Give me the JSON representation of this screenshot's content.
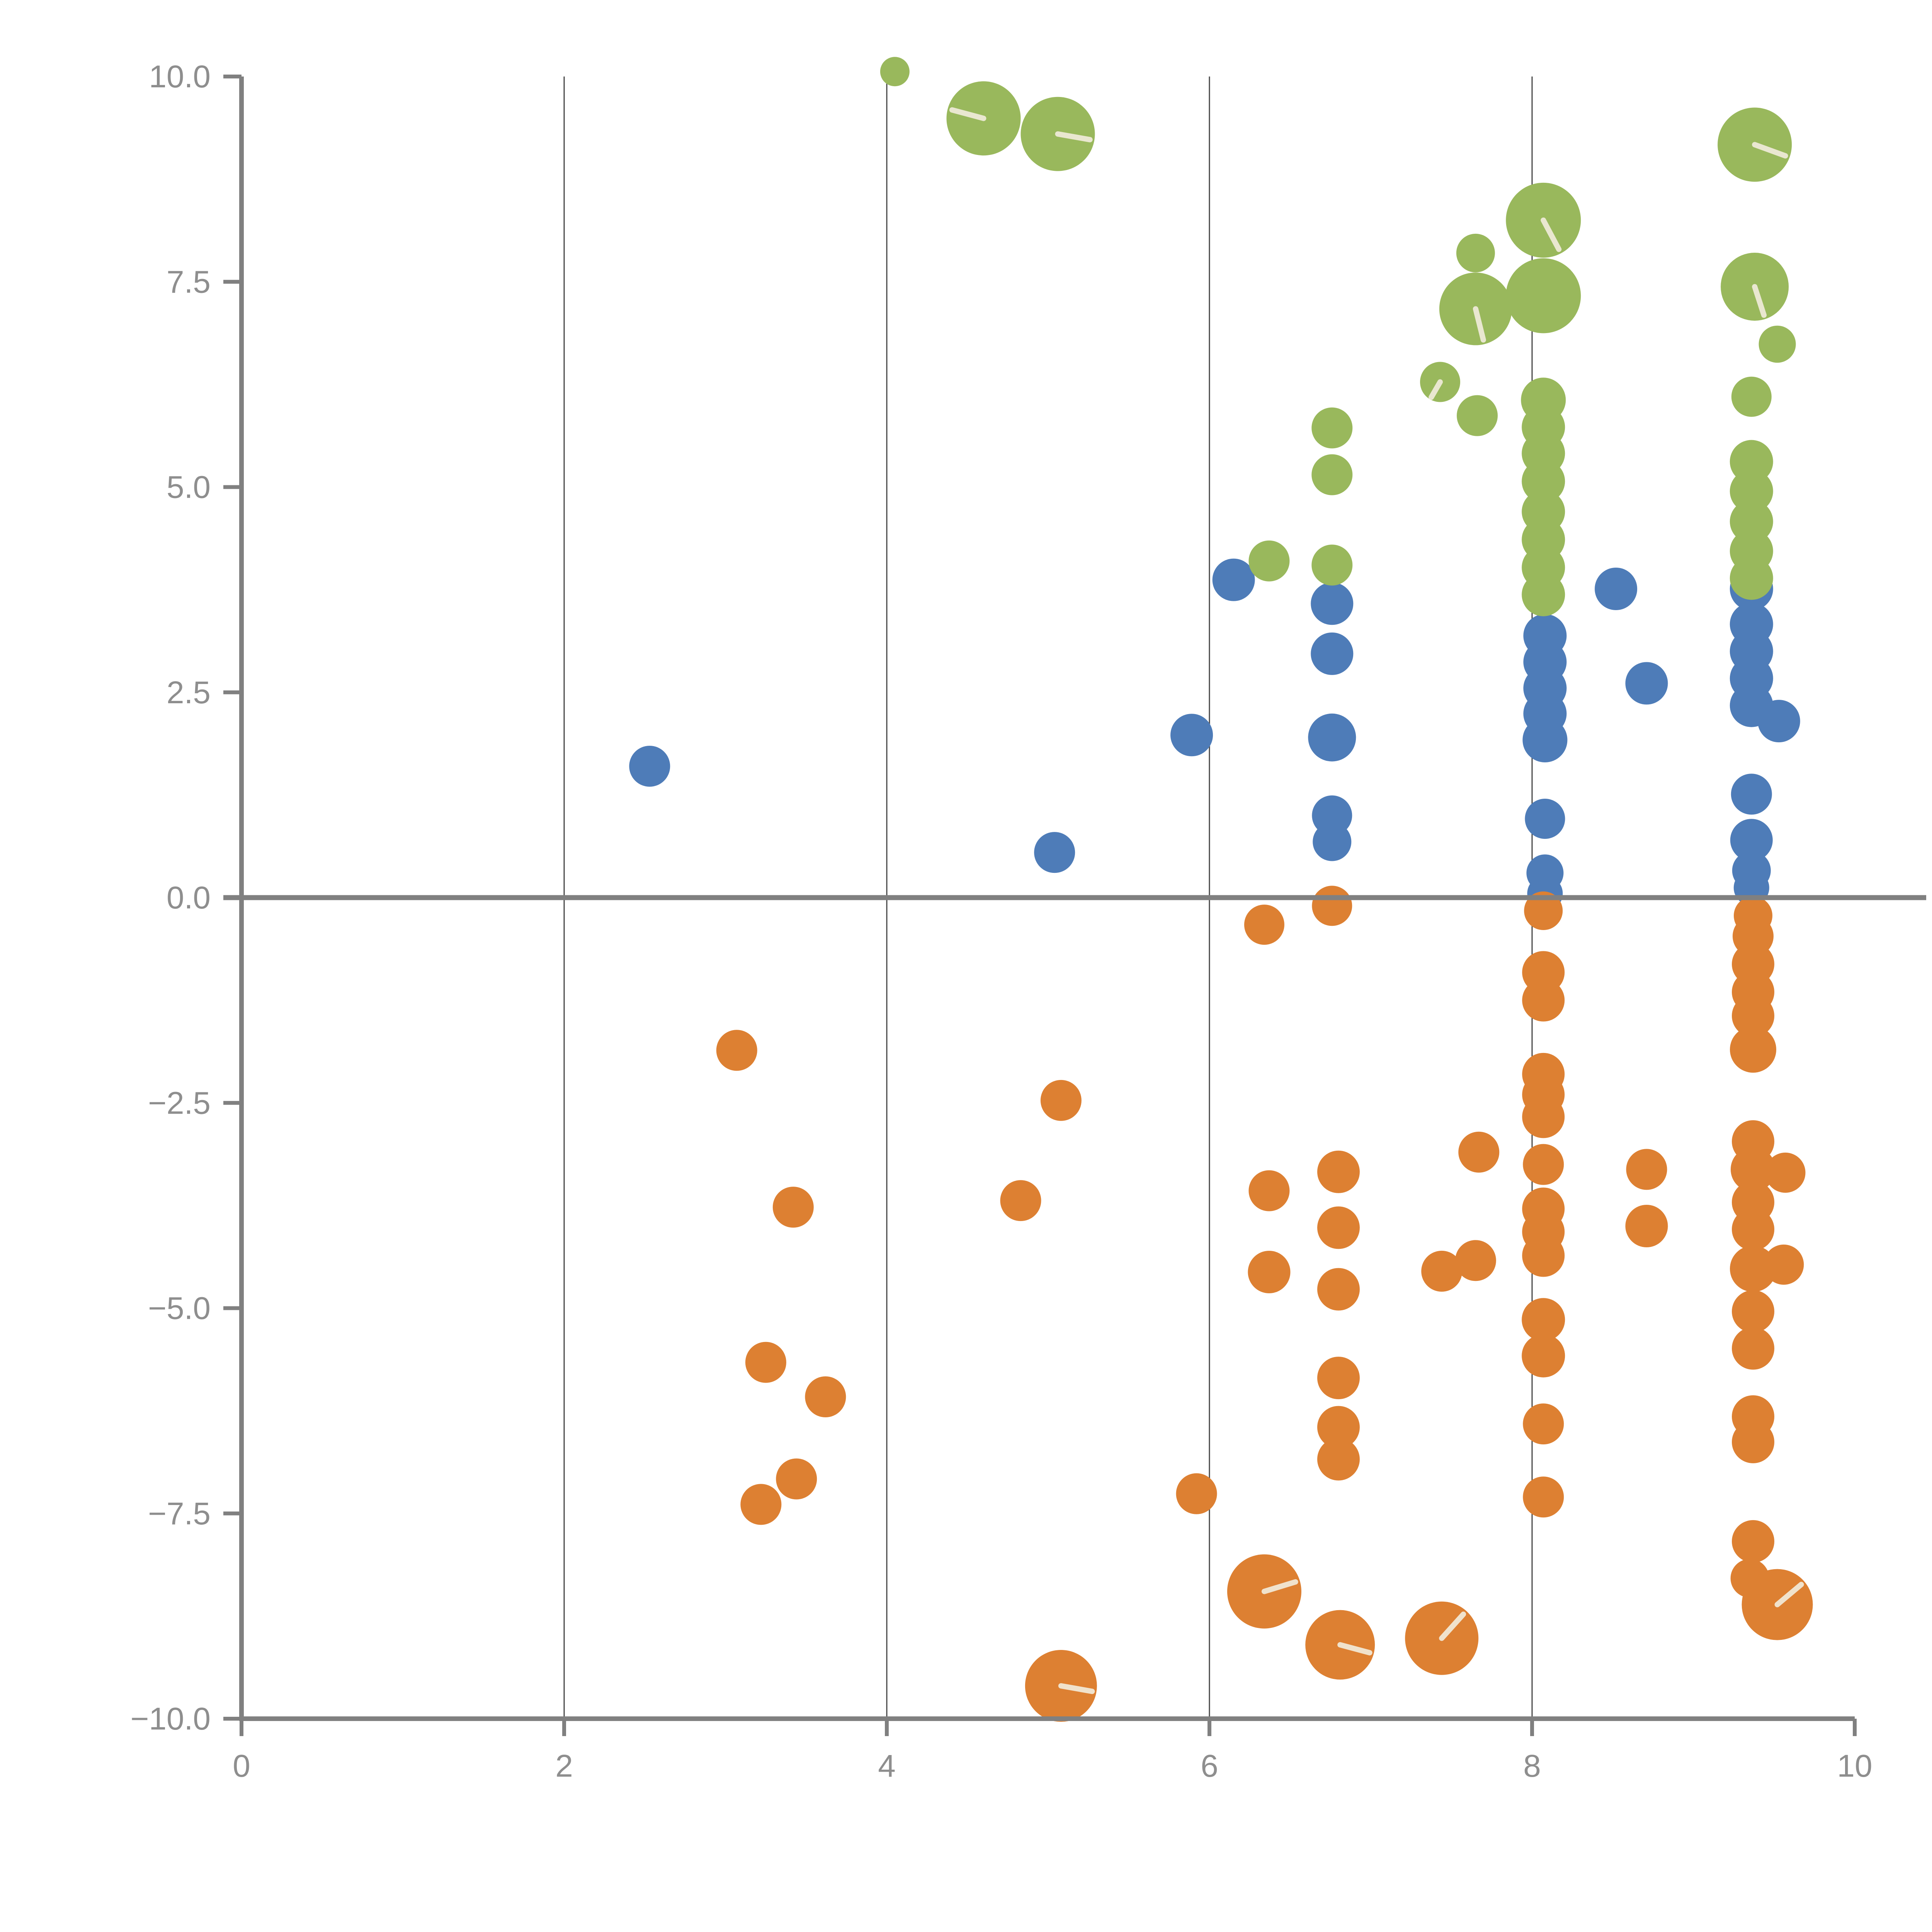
{
  "chart_data": {
    "type": "scatter",
    "title": "",
    "xlabel": "",
    "ylabel": "",
    "xlim": [
      0,
      10
    ],
    "ylim": [
      -10,
      10
    ],
    "grid": "vertical-only",
    "gridlines_x": [
      2,
      4,
      6,
      8
    ],
    "zero_rule_y": 0,
    "legend": "none",
    "x_ticks": [
      {
        "label": "0",
        "value": 0
      },
      {
        "label": "2",
        "value": 2
      },
      {
        "label": "4",
        "value": 4
      },
      {
        "label": "6",
        "value": 6
      },
      {
        "label": "8",
        "value": 8
      },
      {
        "label": "10",
        "value": 10
      }
    ],
    "y_ticks": [
      {
        "label": "10.0",
        "value": 10
      },
      {
        "label": "7.5",
        "value": 7.5
      },
      {
        "label": "5.0",
        "value": 5
      },
      {
        "label": "2.5",
        "value": 2.5
      },
      {
        "label": "0.0",
        "value": 0
      },
      {
        "label": "−2.5",
        "value": -2.5
      },
      {
        "label": "−5.0",
        "value": -5
      },
      {
        "label": "−7.5",
        "value": -7.5
      },
      {
        "label": "−10.0",
        "value": -10
      }
    ],
    "colors": {
      "green": "#99b85c",
      "blue": "#4e7cb8",
      "orange": "#dd8032",
      "axis": "#808080",
      "gridline": "#444444",
      "tick_label": "#8e8e8e",
      "bubble_slash": "#f2ecdd"
    },
    "series": [
      {
        "name": "blue",
        "color": "#4e7cb8",
        "points": [
          {
            "x": 2.53,
            "y": 1.6,
            "r": 53
          },
          {
            "x": 5.04,
            "y": 0.55,
            "r": 53
          },
          {
            "x": 5.89,
            "y": 1.98,
            "r": 55
          },
          {
            "x": 6.15,
            "y": 3.87,
            "r": 55
          },
          {
            "x": 6.76,
            "y": 3.58,
            "r": 55
          },
          {
            "x": 6.76,
            "y": 2.97,
            "r": 55
          },
          {
            "x": 6.76,
            "y": 1.95,
            "r": 62
          },
          {
            "x": 6.76,
            "y": 1.0,
            "r": 52
          },
          {
            "x": 6.76,
            "y": 0.68,
            "r": 50
          },
          {
            "x": 8.08,
            "y": 3.19,
            "r": 56
          },
          {
            "x": 8.08,
            "y": 2.87,
            "r": 56
          },
          {
            "x": 8.08,
            "y": 2.55,
            "r": 56
          },
          {
            "x": 8.08,
            "y": 2.24,
            "r": 56
          },
          {
            "x": 8.08,
            "y": 1.92,
            "r": 58
          },
          {
            "x": 8.08,
            "y": 0.96,
            "r": 52
          },
          {
            "x": 8.08,
            "y": 0.3,
            "r": 48
          },
          {
            "x": 8.08,
            "y": 0.05,
            "r": 46
          },
          {
            "x": 8.52,
            "y": 3.76,
            "r": 55
          },
          {
            "x": 8.71,
            "y": 2.61,
            "r": 55
          },
          {
            "x": 9.36,
            "y": 3.76,
            "r": 56
          },
          {
            "x": 9.36,
            "y": 3.33,
            "r": 56
          },
          {
            "x": 9.36,
            "y": 3.0,
            "r": 56
          },
          {
            "x": 9.36,
            "y": 2.67,
            "r": 56
          },
          {
            "x": 9.36,
            "y": 2.34,
            "r": 56
          },
          {
            "x": 9.53,
            "y": 2.15,
            "r": 55
          },
          {
            "x": 9.36,
            "y": 1.26,
            "r": 53
          },
          {
            "x": 9.36,
            "y": 0.7,
            "r": 55
          },
          {
            "x": 9.36,
            "y": 0.33,
            "r": 50
          },
          {
            "x": 9.36,
            "y": 0.12,
            "r": 46
          }
        ]
      },
      {
        "name": "green",
        "color": "#99b85c",
        "points": [
          {
            "x": 4.6,
            "y": 9.49,
            "r": 96,
            "slash": 195
          },
          {
            "x": 5.06,
            "y": 9.3,
            "r": 96,
            "slash": 10
          },
          {
            "x": 4.05,
            "y": 10.06,
            "r": 38
          },
          {
            "x": 8.07,
            "y": 8.25,
            "r": 97,
            "slash": 62
          },
          {
            "x": 8.07,
            "y": 7.33,
            "r": 97
          },
          {
            "x": 7.65,
            "y": 7.85,
            "r": 50
          },
          {
            "x": 7.65,
            "y": 7.17,
            "r": 94,
            "slash": 76
          },
          {
            "x": 9.38,
            "y": 9.17,
            "r": 96,
            "slash": 20
          },
          {
            "x": 9.38,
            "y": 7.44,
            "r": 88,
            "slash": 72
          },
          {
            "x": 9.52,
            "y": 6.74,
            "r": 48
          },
          {
            "x": 7.43,
            "y": 6.28,
            "r": 52,
            "slash": 120
          },
          {
            "x": 7.66,
            "y": 5.87,
            "r": 53
          },
          {
            "x": 6.76,
            "y": 5.72,
            "r": 53
          },
          {
            "x": 6.76,
            "y": 5.15,
            "r": 53
          },
          {
            "x": 6.37,
            "y": 4.1,
            "r": 53
          },
          {
            "x": 6.76,
            "y": 4.05,
            "r": 53
          },
          {
            "x": 8.07,
            "y": 6.06,
            "r": 58
          },
          {
            "x": 8.07,
            "y": 5.73,
            "r": 56
          },
          {
            "x": 8.07,
            "y": 5.41,
            "r": 56
          },
          {
            "x": 8.07,
            "y": 5.07,
            "r": 56
          },
          {
            "x": 8.07,
            "y": 4.7,
            "r": 56
          },
          {
            "x": 8.07,
            "y": 4.36,
            "r": 56
          },
          {
            "x": 8.07,
            "y": 4.02,
            "r": 56
          },
          {
            "x": 8.07,
            "y": 3.69,
            "r": 56
          },
          {
            "x": 9.36,
            "y": 6.1,
            "r": 52
          },
          {
            "x": 9.36,
            "y": 5.31,
            "r": 56
          },
          {
            "x": 9.36,
            "y": 4.95,
            "r": 56
          },
          {
            "x": 9.36,
            "y": 4.58,
            "r": 56
          },
          {
            "x": 9.36,
            "y": 4.22,
            "r": 56
          },
          {
            "x": 9.36,
            "y": 3.89,
            "r": 56
          }
        ]
      },
      {
        "name": "orange",
        "color": "#dd8032",
        "points": [
          {
            "x": 3.07,
            "y": -1.86,
            "r": 53
          },
          {
            "x": 3.42,
            "y": -3.77,
            "r": 53
          },
          {
            "x": 5.08,
            "y": -2.47,
            "r": 53
          },
          {
            "x": 4.83,
            "y": -3.69,
            "r": 53
          },
          {
            "x": 3.25,
            "y": -5.66,
            "r": 53
          },
          {
            "x": 3.62,
            "y": -6.08,
            "r": 53
          },
          {
            "x": 3.44,
            "y": -7.08,
            "r": 53
          },
          {
            "x": 3.22,
            "y": -7.39,
            "r": 53
          },
          {
            "x": 5.08,
            "y": -9.6,
            "r": 93,
            "slash": 10
          },
          {
            "x": 5.92,
            "y": -7.26,
            "r": 53
          },
          {
            "x": 6.34,
            "y": -0.33,
            "r": 52
          },
          {
            "x": 6.76,
            "y": -0.1,
            "r": 52
          },
          {
            "x": 6.37,
            "y": -3.57,
            "r": 53
          },
          {
            "x": 6.37,
            "y": -4.56,
            "r": 55
          },
          {
            "x": 6.8,
            "y": -3.34,
            "r": 55
          },
          {
            "x": 6.8,
            "y": -4.02,
            "r": 55
          },
          {
            "x": 6.8,
            "y": -4.77,
            "r": 55
          },
          {
            "x": 6.8,
            "y": -5.85,
            "r": 55
          },
          {
            "x": 6.8,
            "y": -6.45,
            "r": 55
          },
          {
            "x": 6.8,
            "y": -6.84,
            "r": 55
          },
          {
            "x": 7.67,
            "y": -3.1,
            "r": 53
          },
          {
            "x": 7.44,
            "y": -4.55,
            "r": 53
          },
          {
            "x": 7.65,
            "y": -4.42,
            "r": 53
          },
          {
            "x": 6.34,
            "y": -8.45,
            "r": 96,
            "slash": -17
          },
          {
            "x": 6.81,
            "y": -9.1,
            "r": 90,
            "slash": 15
          },
          {
            "x": 7.44,
            "y": -9.02,
            "r": 95,
            "slash": -48
          },
          {
            "x": 8.07,
            "y": -0.16,
            "r": 50
          },
          {
            "x": 8.07,
            "y": -0.91,
            "r": 55
          },
          {
            "x": 8.07,
            "y": -1.25,
            "r": 55
          },
          {
            "x": 8.07,
            "y": -2.15,
            "r": 55
          },
          {
            "x": 8.07,
            "y": -2.4,
            "r": 55
          },
          {
            "x": 8.07,
            "y": -2.67,
            "r": 55
          },
          {
            "x": 8.07,
            "y": -3.25,
            "r": 53
          },
          {
            "x": 8.07,
            "y": -3.79,
            "r": 55
          },
          {
            "x": 8.07,
            "y": -4.07,
            "r": 55
          },
          {
            "x": 8.07,
            "y": -4.36,
            "r": 55
          },
          {
            "x": 8.07,
            "y": -5.14,
            "r": 56
          },
          {
            "x": 8.07,
            "y": -5.58,
            "r": 56
          },
          {
            "x": 8.07,
            "y": -6.41,
            "r": 53
          },
          {
            "x": 8.07,
            "y": -7.3,
            "r": 53
          },
          {
            "x": 9.37,
            "y": -0.22,
            "r": 50
          },
          {
            "x": 9.37,
            "y": -0.47,
            "r": 53
          },
          {
            "x": 9.37,
            "y": -0.81,
            "r": 55
          },
          {
            "x": 9.37,
            "y": -1.15,
            "r": 55
          },
          {
            "x": 9.37,
            "y": -1.44,
            "r": 55
          },
          {
            "x": 9.37,
            "y": -1.85,
            "r": 60
          },
          {
            "x": 9.37,
            "y": -2.97,
            "r": 55
          },
          {
            "x": 9.37,
            "y": -3.31,
            "r": 58
          },
          {
            "x": 9.57,
            "y": -3.35,
            "r": 52
          },
          {
            "x": 9.37,
            "y": -3.71,
            "r": 55
          },
          {
            "x": 9.37,
            "y": -4.04,
            "r": 55
          },
          {
            "x": 9.37,
            "y": -4.52,
            "r": 60
          },
          {
            "x": 9.56,
            "y": -4.47,
            "r": 52
          },
          {
            "x": 8.71,
            "y": -3.31,
            "r": 53
          },
          {
            "x": 8.71,
            "y": -4.0,
            "r": 55
          },
          {
            "x": 9.37,
            "y": -5.04,
            "r": 55
          },
          {
            "x": 9.37,
            "y": -5.49,
            "r": 55
          },
          {
            "x": 9.37,
            "y": -6.32,
            "r": 55
          },
          {
            "x": 9.37,
            "y": -6.63,
            "r": 55
          },
          {
            "x": 9.37,
            "y": -7.84,
            "r": 55
          },
          {
            "x": 9.35,
            "y": -8.29,
            "r": 50
          },
          {
            "x": 9.52,
            "y": -8.61,
            "r": 92,
            "slash": -40
          }
        ]
      }
    ]
  }
}
